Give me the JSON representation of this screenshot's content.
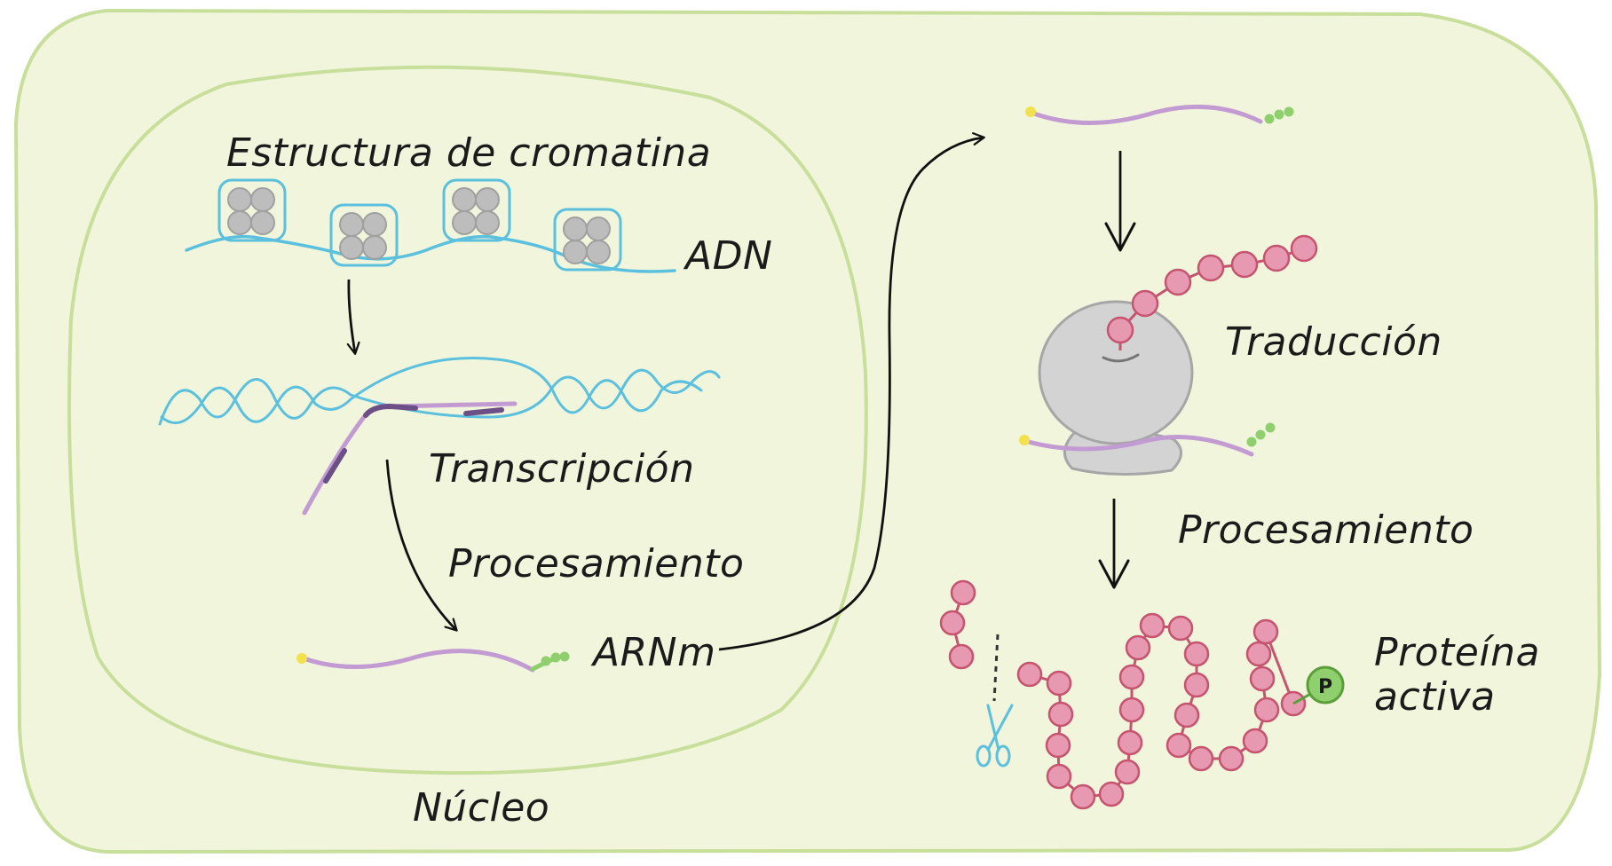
{
  "labels": {
    "chromatin": "Estructura de cromatina",
    "dna": "ADN",
    "transcription": "Transcripción",
    "processing_nucleus": "Procesamiento",
    "mrna": "ARNm",
    "nucleus": "Núcleo",
    "translation": "Traducción",
    "processing_cytoplasm": "Procesamiento",
    "active_protein_line1": "Proteína",
    "active_protein_line2": "activa",
    "phosphate": "P"
  },
  "colors": {
    "cell_fill": "#f1f5dc",
    "cell_border": "#c8df9c",
    "dna": "#5bc0de",
    "histone": "#bdbdbd",
    "mrna": "#c39bd3",
    "mrna_dark": "#6b4f86",
    "cap": "#f2e14c",
    "poly_a_tail": "#8fcf6e",
    "ribosome": "#d3d3d3",
    "amino_acid": "#e899b2",
    "amino_acid_border": "#c6546f",
    "phosphate": "#8fcf6e",
    "scissors": "#5bc0de",
    "arrow": "#111111"
  },
  "icons": [
    "histone-nucleosome-icon",
    "ribosome-icon",
    "scissors-icon",
    "phosphate-icon"
  ]
}
